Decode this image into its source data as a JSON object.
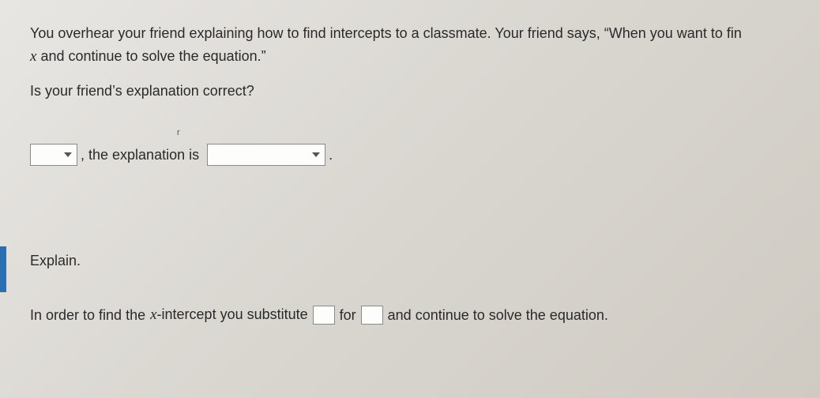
{
  "colors": {
    "text": "#2a2a2a",
    "border": "#8a8a8a",
    "field_bg": "#fdfdfb",
    "accent_tab": "#2a6fb0",
    "bg_grad_start": "#e8e6e3",
    "bg_grad_end": "#cfcbc3"
  },
  "typography": {
    "body_fontsize": 18,
    "math_var_family": "Times New Roman"
  },
  "problem": {
    "line1_a": "You overhear your friend explaining how to find intercepts to a classmate. Your friend says, “When you want to fin",
    "line2_var": "x",
    "line2_b": " and continue to solve the equation.”",
    "question": "Is your friend’s explanation correct?"
  },
  "answer": {
    "dropdown1_value": "",
    "mid_text": ", the explanation is",
    "dropdown2_value": "",
    "trailing_period": "."
  },
  "explain": {
    "label": "Explain.",
    "sentence_a": "In order to find the ",
    "var": "x",
    "sentence_b": "-intercept you substitute",
    "blank1": "",
    "for_text": "for",
    "blank2": "",
    "sentence_c": "and continue to solve the equation."
  },
  "tick_mark": "r"
}
